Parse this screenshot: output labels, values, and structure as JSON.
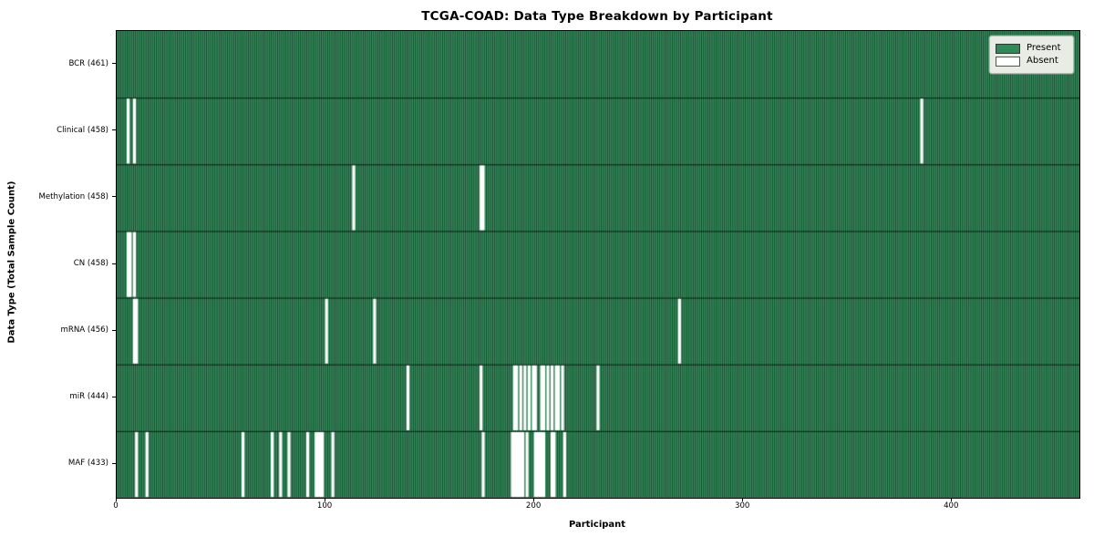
{
  "title": "TCGA-COAD: Data Type Breakdown by Participant",
  "chart_data": {
    "type": "heatmap",
    "title": "TCGA-COAD: Data Type Breakdown by Participant",
    "xlabel": "Participant",
    "ylabel": "Data Type (Total Sample Count)",
    "x_ticks": [
      0,
      100,
      200,
      300,
      400
    ],
    "x_range": [
      0,
      461
    ],
    "n_participants": 461,
    "grid": false,
    "legend": {
      "position": "upper right",
      "entries": [
        {
          "label": "Present",
          "color": "#2e8b57"
        },
        {
          "label": "Absent",
          "color": "#ffffff"
        }
      ]
    },
    "colors": {
      "present": "#38905f",
      "present_edge": "#16402b",
      "absent": "#ffffff",
      "row_divider": "rgba(0,0,0,0.75)"
    },
    "rows": [
      {
        "name": "BCR",
        "label": "BCR (461)",
        "present_count": 461,
        "missing_participants": []
      },
      {
        "name": "Clinical",
        "label": "Clinical (458)",
        "present_count": 458,
        "missing_participants": [
          5,
          8,
          385
        ]
      },
      {
        "name": "Methylation",
        "label": "Methylation (458)",
        "present_count": 458,
        "missing_participants": [
          113,
          174,
          175
        ]
      },
      {
        "name": "CN",
        "label": "CN (458)",
        "present_count": 458,
        "missing_participants": [
          5,
          6,
          8
        ]
      },
      {
        "name": "mRNA",
        "label": "mRNA (456)",
        "present_count": 456,
        "missing_participants": [
          8,
          9,
          100,
          123,
          269
        ]
      },
      {
        "name": "miR",
        "label": "miR (444)",
        "present_count": 444,
        "missing_participants": [
          139,
          174,
          190,
          191,
          193,
          195,
          197,
          199,
          200,
          203,
          204,
          206,
          208,
          210,
          211,
          213,
          230
        ]
      },
      {
        "name": "MAF",
        "label": "MAF (433)",
        "present_count": 433,
        "missing_participants": [
          9,
          14,
          60,
          74,
          78,
          82,
          91,
          95,
          96,
          97,
          98,
          103,
          175,
          189,
          190,
          191,
          192,
          193,
          194,
          196,
          200,
          201,
          202,
          203,
          204,
          208,
          209,
          214
        ]
      }
    ]
  }
}
